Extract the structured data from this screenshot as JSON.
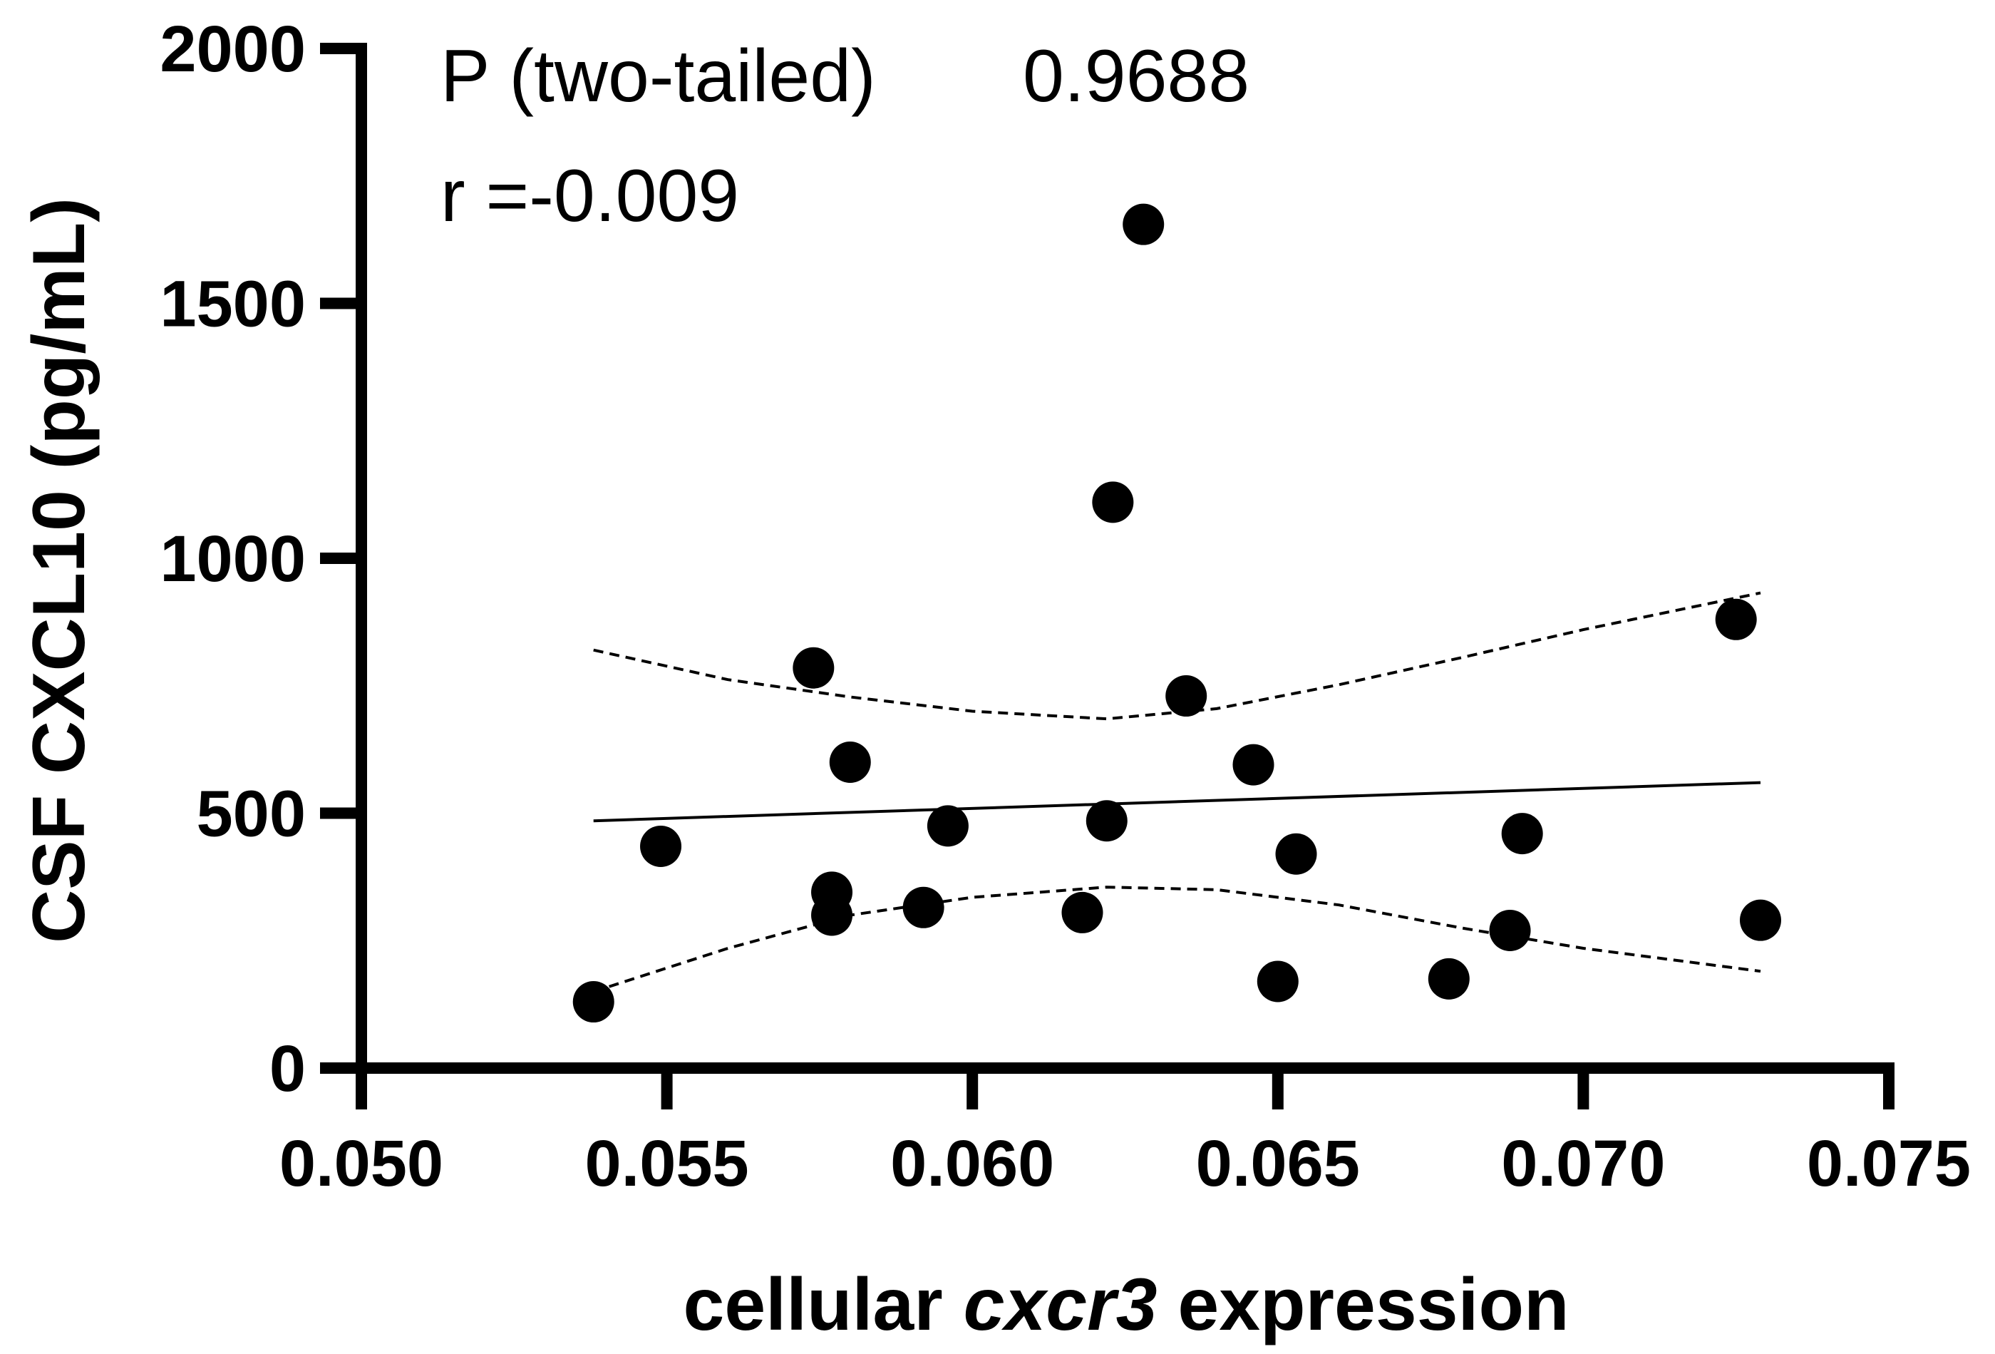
{
  "chart_data": {
    "type": "scatter",
    "title": "",
    "xlabel_parts": [
      {
        "text": "cellular ",
        "italic": false
      },
      {
        "text": "cxcr3",
        "italic": true
      },
      {
        "text": " expression",
        "italic": false
      }
    ],
    "ylabel": "CSF CXCL10 (pg/mL)",
    "xlim": [
      0.05,
      0.075
    ],
    "ylim": [
      0,
      2000
    ],
    "x_ticks": [
      "0.050",
      "0.055",
      "0.060",
      "0.065",
      "0.070",
      "0.075"
    ],
    "y_ticks": [
      "0",
      "500",
      "1000",
      "1500",
      "2000"
    ],
    "grid": false,
    "annotations": {
      "p_label": "P (two-tailed)",
      "p_value": "0.9688",
      "r_text": "r =-0.009"
    },
    "points": [
      {
        "x": 0.0538,
        "y": 130
      },
      {
        "x": 0.0549,
        "y": 435
      },
      {
        "x": 0.0574,
        "y": 785
      },
      {
        "x": 0.0577,
        "y": 300
      },
      {
        "x": 0.0577,
        "y": 345
      },
      {
        "x": 0.058,
        "y": 600
      },
      {
        "x": 0.0592,
        "y": 315
      },
      {
        "x": 0.0596,
        "y": 475
      },
      {
        "x": 0.0618,
        "y": 305
      },
      {
        "x": 0.0622,
        "y": 485
      },
      {
        "x": 0.0623,
        "y": 1110
      },
      {
        "x": 0.0628,
        "y": 1655
      },
      {
        "x": 0.0635,
        "y": 730
      },
      {
        "x": 0.0646,
        "y": 595
      },
      {
        "x": 0.065,
        "y": 170
      },
      {
        "x": 0.0653,
        "y": 420
      },
      {
        "x": 0.0678,
        "y": 175
      },
      {
        "x": 0.0688,
        "y": 270
      },
      {
        "x": 0.069,
        "y": 460
      },
      {
        "x": 0.0725,
        "y": 880
      },
      {
        "x": 0.0729,
        "y": 290
      }
    ],
    "fit_line": {
      "x": [
        0.0538,
        0.0729
      ],
      "y": [
        485,
        560
      ]
    },
    "ci_upper": {
      "x": [
        0.0538,
        0.056,
        0.058,
        0.06,
        0.0622,
        0.064,
        0.066,
        0.068,
        0.07,
        0.0729
      ],
      "y": [
        820,
        762,
        728,
        700,
        685,
        705,
        752,
        805,
        860,
        932
      ]
    },
    "ci_lower": {
      "x": [
        0.0538,
        0.056,
        0.058,
        0.06,
        0.0622,
        0.064,
        0.066,
        0.068,
        0.07,
        0.0729
      ],
      "y": [
        150,
        235,
        300,
        335,
        355,
        350,
        320,
        275,
        235,
        190
      ]
    }
  }
}
